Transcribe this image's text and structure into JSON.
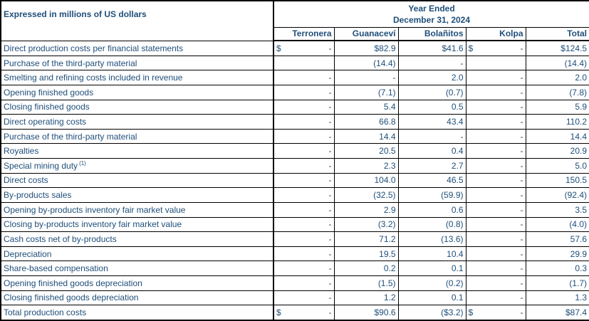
{
  "colors": {
    "text": "#1F4E79",
    "border": "#000000",
    "background": "#FFFFFF"
  },
  "table": {
    "corner_label": "Expressed in millions of US dollars",
    "period": {
      "line1": "Year Ended",
      "line2": "December 31, 2024"
    },
    "columns": [
      "Terronera",
      "Guanaceví",
      "Bolañitos",
      "Kolpa",
      "Total"
    ],
    "rows": [
      {
        "label": "Direct production costs per financial statements",
        "sup": "",
        "cells": [
          {
            "sym": "$",
            "val": "-"
          },
          {
            "sym": "",
            "val": "$82.9"
          },
          {
            "sym": "",
            "val": "$41.6"
          },
          {
            "sym": "$",
            "val": "-"
          },
          {
            "sym": "",
            "val": "$124.5"
          }
        ]
      },
      {
        "label": "Purchase of the third-party material",
        "sup": "",
        "cells": [
          {
            "sym": "",
            "val": ""
          },
          {
            "sym": "",
            "val": "(14.4)"
          },
          {
            "sym": "",
            "val": "-"
          },
          {
            "sym": "",
            "val": ""
          },
          {
            "sym": "",
            "val": "(14.4)"
          }
        ]
      },
      {
        "label": "Smelting and refining costs included in revenue",
        "sup": "",
        "cells": [
          {
            "sym": "",
            "val": "-"
          },
          {
            "sym": "",
            "val": "-"
          },
          {
            "sym": "",
            "val": "2.0"
          },
          {
            "sym": "",
            "val": "-"
          },
          {
            "sym": "",
            "val": "2.0"
          }
        ]
      },
      {
        "label": "Opening finished goods",
        "sup": "",
        "cells": [
          {
            "sym": "",
            "val": "-"
          },
          {
            "sym": "",
            "val": "(7.1)"
          },
          {
            "sym": "",
            "val": "(0.7)"
          },
          {
            "sym": "",
            "val": "-"
          },
          {
            "sym": "",
            "val": "(7.8)"
          }
        ]
      },
      {
        "label": "Closing finished goods",
        "sup": "",
        "cells": [
          {
            "sym": "",
            "val": "-"
          },
          {
            "sym": "",
            "val": "5.4"
          },
          {
            "sym": "",
            "val": "0.5"
          },
          {
            "sym": "",
            "val": "-"
          },
          {
            "sym": "",
            "val": "5.9"
          }
        ]
      },
      {
        "label": "Direct operating costs",
        "sup": "",
        "cells": [
          {
            "sym": "",
            "val": "-"
          },
          {
            "sym": "",
            "val": "66.8"
          },
          {
            "sym": "",
            "val": "43.4"
          },
          {
            "sym": "",
            "val": "-"
          },
          {
            "sym": "",
            "val": "110.2"
          }
        ]
      },
      {
        "label": "Purchase of the third-party material",
        "sup": "",
        "cells": [
          {
            "sym": "",
            "val": "-"
          },
          {
            "sym": "",
            "val": "14.4"
          },
          {
            "sym": "",
            "val": "-"
          },
          {
            "sym": "",
            "val": "-"
          },
          {
            "sym": "",
            "val": "14.4"
          }
        ]
      },
      {
        "label": "Royalties",
        "sup": "",
        "cells": [
          {
            "sym": "",
            "val": "-"
          },
          {
            "sym": "",
            "val": "20.5"
          },
          {
            "sym": "",
            "val": "0.4"
          },
          {
            "sym": "",
            "val": "-"
          },
          {
            "sym": "",
            "val": "20.9"
          }
        ]
      },
      {
        "label": "Special mining duty",
        "sup": "(1)",
        "cells": [
          {
            "sym": "",
            "val": "-"
          },
          {
            "sym": "",
            "val": "2.3"
          },
          {
            "sym": "",
            "val": "2.7"
          },
          {
            "sym": "",
            "val": "-"
          },
          {
            "sym": "",
            "val": "5.0"
          }
        ]
      },
      {
        "label": "Direct costs",
        "sup": "",
        "cells": [
          {
            "sym": "",
            "val": "-"
          },
          {
            "sym": "",
            "val": "104.0"
          },
          {
            "sym": "",
            "val": "46.5"
          },
          {
            "sym": "",
            "val": "-"
          },
          {
            "sym": "",
            "val": "150.5"
          }
        ]
      },
      {
        "label": "By-products sales",
        "sup": "",
        "cells": [
          {
            "sym": "",
            "val": "-"
          },
          {
            "sym": "",
            "val": "(32.5)"
          },
          {
            "sym": "",
            "val": "(59.9)"
          },
          {
            "sym": "",
            "val": "-"
          },
          {
            "sym": "",
            "val": "(92.4)"
          }
        ]
      },
      {
        "label": "Opening by-products inventory fair market value",
        "sup": "",
        "cells": [
          {
            "sym": "",
            "val": "-"
          },
          {
            "sym": "",
            "val": "2.9"
          },
          {
            "sym": "",
            "val": "0.6"
          },
          {
            "sym": "",
            "val": "-"
          },
          {
            "sym": "",
            "val": "3.5"
          }
        ]
      },
      {
        "label": "Closing by-products inventory fair market value",
        "sup": "",
        "cells": [
          {
            "sym": "",
            "val": "-"
          },
          {
            "sym": "",
            "val": "(3.2)"
          },
          {
            "sym": "",
            "val": "(0.8)"
          },
          {
            "sym": "",
            "val": "-"
          },
          {
            "sym": "",
            "val": "(4.0)"
          }
        ]
      },
      {
        "label": "Cash costs net of by-products",
        "sup": "",
        "cells": [
          {
            "sym": "",
            "val": "-"
          },
          {
            "sym": "",
            "val": "71.2"
          },
          {
            "sym": "",
            "val": "(13.6)"
          },
          {
            "sym": "",
            "val": "-"
          },
          {
            "sym": "",
            "val": "57.6"
          }
        ]
      },
      {
        "label": "Depreciation",
        "sup": "",
        "cells": [
          {
            "sym": "",
            "val": "-"
          },
          {
            "sym": "",
            "val": "19.5"
          },
          {
            "sym": "",
            "val": "10.4"
          },
          {
            "sym": "",
            "val": "-"
          },
          {
            "sym": "",
            "val": "29.9"
          }
        ]
      },
      {
        "label": "Share-based compensation",
        "sup": "",
        "cells": [
          {
            "sym": "",
            "val": "-"
          },
          {
            "sym": "",
            "val": "0.2"
          },
          {
            "sym": "",
            "val": "0.1"
          },
          {
            "sym": "",
            "val": "-"
          },
          {
            "sym": "",
            "val": "0.3"
          }
        ]
      },
      {
        "label": "Opening finished goods depreciation",
        "sup": "",
        "cells": [
          {
            "sym": "",
            "val": "-"
          },
          {
            "sym": "",
            "val": "(1.5)"
          },
          {
            "sym": "",
            "val": "(0.2)"
          },
          {
            "sym": "",
            "val": "-"
          },
          {
            "sym": "",
            "val": "(1.7)"
          }
        ]
      },
      {
        "label": "Closing finished goods depreciation",
        "sup": "",
        "cells": [
          {
            "sym": "",
            "val": "-"
          },
          {
            "sym": "",
            "val": "1.2"
          },
          {
            "sym": "",
            "val": "0.1"
          },
          {
            "sym": "",
            "val": "-"
          },
          {
            "sym": "",
            "val": "1.3"
          }
        ]
      },
      {
        "label": "Total production costs",
        "sup": "",
        "cells": [
          {
            "sym": "$",
            "val": "-"
          },
          {
            "sym": "",
            "val": "$90.6"
          },
          {
            "sym": "",
            "val": "($3.2)"
          },
          {
            "sym": "$",
            "val": "-"
          },
          {
            "sym": "",
            "val": "$87.4"
          }
        ]
      }
    ]
  }
}
